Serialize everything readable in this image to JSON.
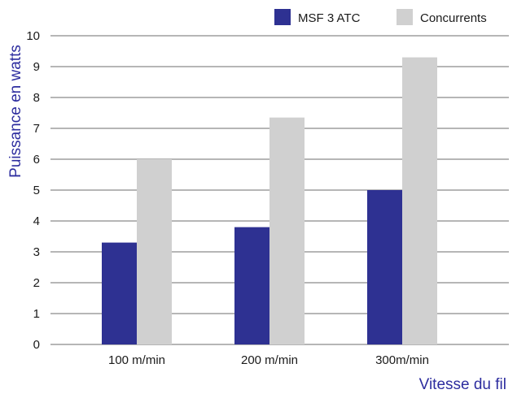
{
  "chart_data": {
    "type": "bar",
    "categories": [
      "100 m/min",
      "200 m/min",
      "300m/min"
    ],
    "series": [
      {
        "name": "MSF 3 ATC",
        "values": [
          3.3,
          3.8,
          5.0
        ],
        "color": "#2e3192"
      },
      {
        "name": "Concurrents",
        "values": [
          6.0,
          7.35,
          9.3
        ],
        "color": "#d0d0d0"
      }
    ],
    "title": "",
    "xlabel": "Vitesse du fil",
    "ylabel": "Puissance en watts",
    "ylim": [
      0,
      10
    ],
    "yticks": [
      0,
      1,
      2,
      3,
      4,
      5,
      6,
      7,
      8,
      9,
      10
    ],
    "grid": true,
    "legend_position": "top-right"
  }
}
